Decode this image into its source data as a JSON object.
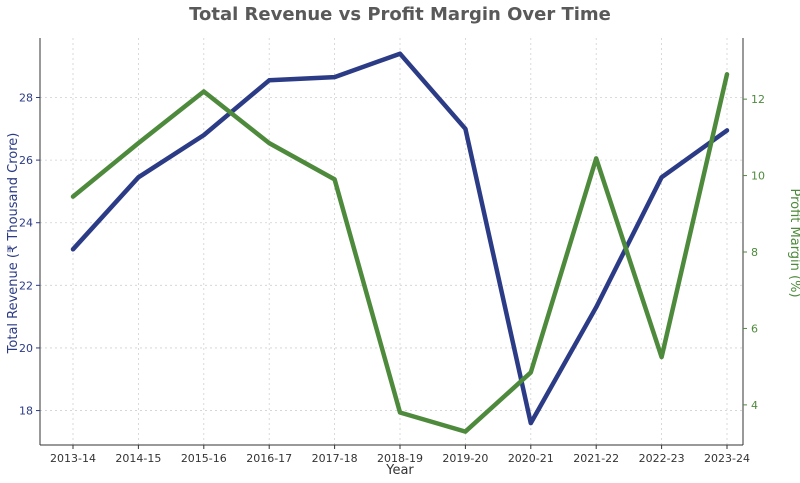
{
  "chart_data": {
    "type": "line",
    "title": "Total Revenue vs Profit Margin Over Time",
    "xlabel": "Year",
    "ylabel_left": "Total Revenue (₹ Thousand Crore)",
    "ylabel_right": "Profit Margin (%)",
    "categories": [
      "2013-14",
      "2014-15",
      "2015-16",
      "2016-17",
      "2017-18",
      "2018-19",
      "2019-20",
      "2020-21",
      "2021-22",
      "2022-23",
      "2023-24"
    ],
    "ylim_left": [
      16.9,
      29.9
    ],
    "yticks_left": [
      18,
      20,
      22,
      24,
      26,
      28
    ],
    "ylim_right": [
      2.95,
      13.6
    ],
    "yticks_right": [
      4,
      6,
      8,
      10,
      12
    ],
    "grid": true,
    "series": [
      {
        "name": "Total Revenue",
        "axis": "left",
        "color": "#2b3b86",
        "values": [
          23.15,
          25.45,
          26.8,
          28.55,
          28.65,
          29.4,
          27.0,
          17.6,
          21.3,
          25.45,
          26.95
        ]
      },
      {
        "name": "Profit Margin",
        "axis": "right",
        "color": "#4e8a3c",
        "values": [
          9.45,
          10.85,
          12.2,
          10.85,
          9.9,
          3.8,
          3.3,
          4.85,
          10.45,
          5.25,
          12.65
        ]
      }
    ]
  }
}
